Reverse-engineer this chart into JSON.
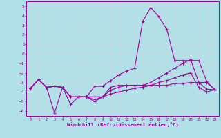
{
  "xlabel": "Windchill (Refroidissement éolien,°C)",
  "background_color": "#b2e0e8",
  "grid_color": "#c8d8dc",
  "line_color": "#990099",
  "xlim": [
    -0.5,
    23.5
  ],
  "ylim": [
    -6.5,
    5.5
  ],
  "xticks": [
    0,
    1,
    2,
    3,
    4,
    5,
    6,
    7,
    8,
    9,
    10,
    11,
    12,
    13,
    14,
    15,
    16,
    17,
    18,
    19,
    20,
    21,
    22,
    23
  ],
  "yticks": [
    -6,
    -5,
    -4,
    -3,
    -2,
    -1,
    0,
    1,
    2,
    3,
    4,
    5
  ],
  "line1_x": [
    0,
    1,
    2,
    3,
    4,
    5,
    6,
    7,
    8,
    9,
    10,
    11,
    12,
    13,
    14,
    15,
    16,
    17,
    18,
    19,
    20,
    21,
    22,
    23
  ],
  "line1_y": [
    -3.6,
    -2.7,
    -3.5,
    -3.4,
    -3.5,
    -4.5,
    -4.5,
    -4.5,
    -3.4,
    -3.4,
    -2.8,
    -2.2,
    -1.8,
    -1.5,
    3.4,
    4.85,
    3.9,
    2.6,
    -0.7,
    -0.7,
    -0.7,
    -0.7,
    -2.9,
    -3.75
  ],
  "line2_x": [
    0,
    1,
    2,
    3,
    4,
    5,
    6,
    7,
    8,
    9,
    10,
    11,
    12,
    13,
    14,
    15,
    16,
    17,
    18,
    19,
    20,
    21,
    22,
    23
  ],
  "line2_y": [
    -3.6,
    -2.7,
    -3.5,
    -6.2,
    -3.5,
    -5.3,
    -4.5,
    -4.5,
    -5.0,
    -4.5,
    -3.5,
    -3.3,
    -3.3,
    -3.3,
    -3.3,
    -3.3,
    -3.3,
    -3.3,
    -3.1,
    -3.1,
    -3.0,
    -3.0,
    -3.0,
    -3.75
  ],
  "line3_x": [
    0,
    1,
    2,
    3,
    4,
    5,
    6,
    7,
    8,
    9,
    10,
    11,
    12,
    13,
    14,
    15,
    16,
    17,
    18,
    19,
    20,
    21,
    22,
    23
  ],
  "line3_y": [
    -3.6,
    -2.7,
    -3.5,
    -3.4,
    -3.5,
    -4.5,
    -4.5,
    -4.5,
    -4.5,
    -4.5,
    -3.8,
    -3.5,
    -3.3,
    -3.3,
    -3.3,
    -3.0,
    -2.5,
    -2.0,
    -1.5,
    -1.0,
    -0.6,
    -3.0,
    -3.7,
    -3.75
  ],
  "line4_x": [
    0,
    1,
    2,
    3,
    4,
    5,
    6,
    7,
    8,
    9,
    10,
    11,
    12,
    13,
    14,
    15,
    16,
    17,
    18,
    19,
    20,
    21,
    22,
    23
  ],
  "line4_y": [
    -3.6,
    -2.7,
    -3.5,
    -3.4,
    -3.5,
    -4.5,
    -4.5,
    -4.5,
    -4.8,
    -4.5,
    -4.2,
    -4.0,
    -3.8,
    -3.6,
    -3.5,
    -3.3,
    -3.0,
    -2.8,
    -2.5,
    -2.2,
    -2.0,
    -3.5,
    -4.0,
    -3.75
  ]
}
